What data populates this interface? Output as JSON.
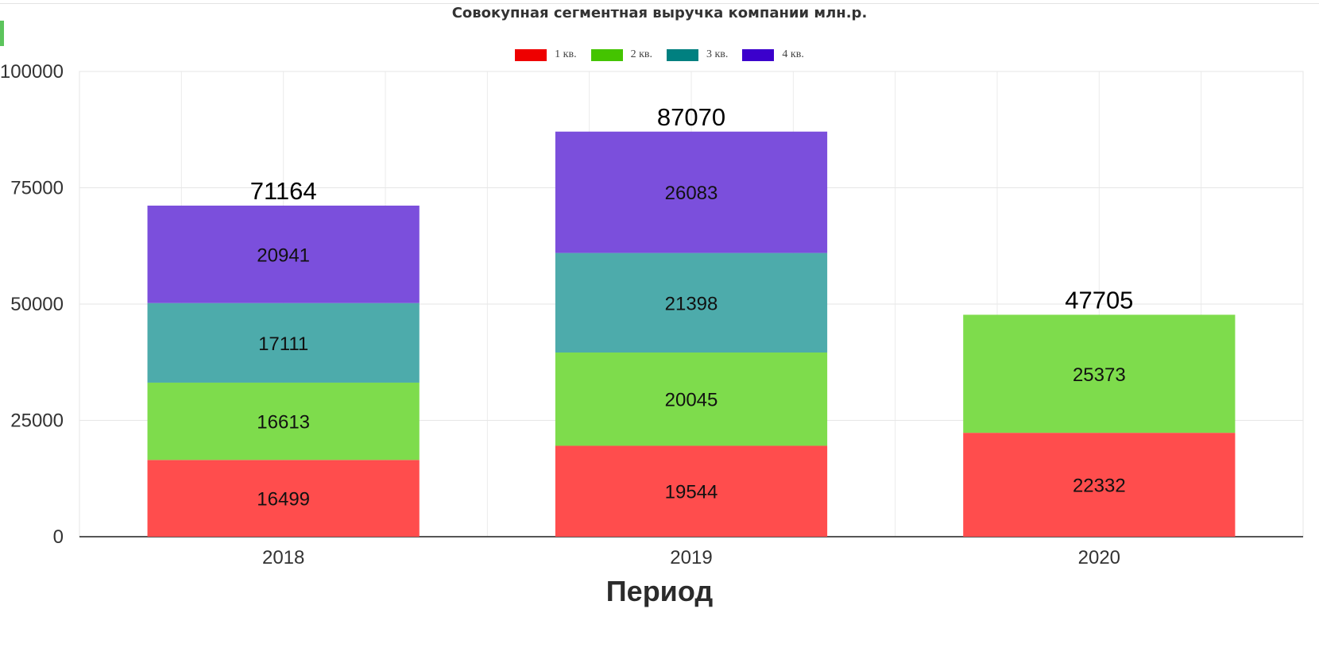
{
  "chart_data": {
    "type": "bar",
    "stacked": true,
    "title": "Совокупная сегментная выручка компании млн.р.",
    "xlabel": "Период",
    "ylabel": "",
    "categories": [
      "2018",
      "2019",
      "2020"
    ],
    "ylim": [
      0,
      100000
    ],
    "yticks": [
      "0",
      "25000",
      "50000",
      "75000",
      "100000"
    ],
    "grid": true,
    "legend_position": "top-center",
    "series": [
      {
        "name": "1 кв.",
        "legend_color": "#ee0000",
        "bar_color": "#ff4d4d",
        "values": [
          16499,
          19544,
          22332
        ]
      },
      {
        "name": "2 кв.",
        "legend_color": "#44c400",
        "bar_color": "#7edc4c",
        "values": [
          16613,
          20045,
          25373
        ]
      },
      {
        "name": "3 кв.",
        "legend_color": "#008080",
        "bar_color": "#4dabab",
        "values": [
          17111,
          21398,
          null
        ]
      },
      {
        "name": "4 кв.",
        "legend_color": "#3b00cc",
        "bar_color": "#7b4fdc",
        "values": [
          20941,
          26083,
          null
        ]
      }
    ],
    "totals": [
      "71164",
      "87070",
      "47705"
    ],
    "segment_labels": [
      [
        "16499",
        "19544",
        "22332"
      ],
      [
        "16613",
        "20045",
        "25373"
      ],
      [
        "17111",
        "21398",
        ""
      ],
      [
        "20941",
        "26083",
        ""
      ]
    ]
  }
}
